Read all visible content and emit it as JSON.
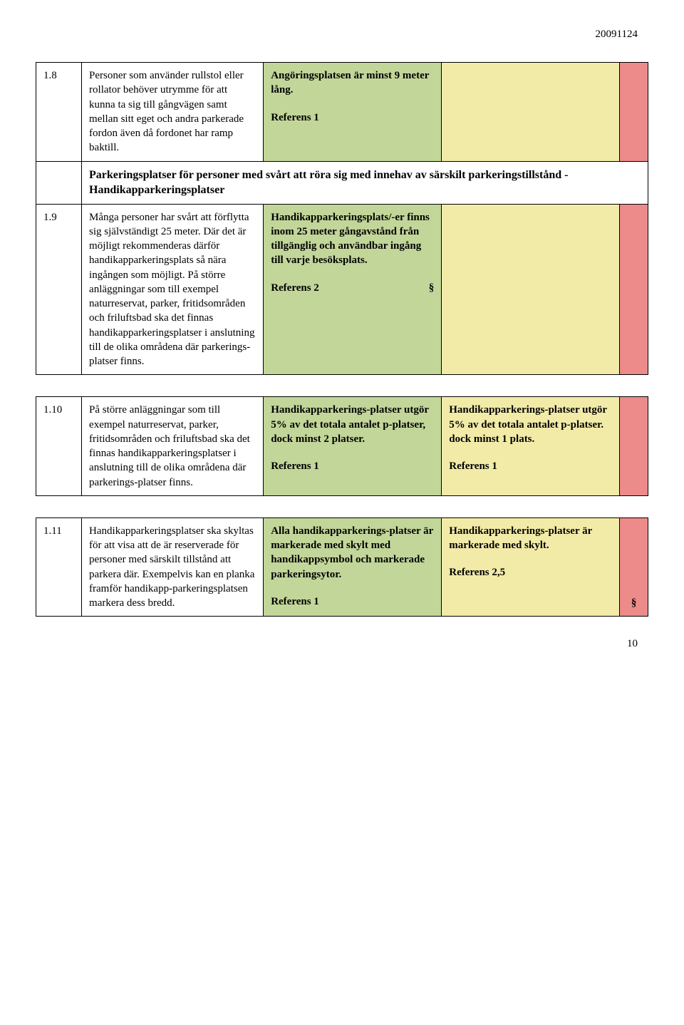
{
  "date": "20091124",
  "page_number": "10",
  "colors": {
    "col3_bg": "#c2d699",
    "col4_bg": "#f2eba8",
    "col5_bg": "#ed8a8a",
    "border": "#000000",
    "text": "#000000"
  },
  "rows": {
    "r18": {
      "num": "1.8",
      "c2": "Personer som använder rullstol eller rollator behöver utrymme för att kunna ta sig till gångvägen samt mellan sitt eget och andra parkerade fordon även då fordonet har ramp baktill.",
      "c3_bold": "Angöringsplatsen är minst 9 meter lång.",
      "c3_ref": "Referens 1"
    },
    "section": {
      "title": "Parkeringsplatser för personer med svårt att röra sig med innehav av särskilt parkeringstillstånd -  Handikapparkeringsplatser"
    },
    "r19": {
      "num": "1.9",
      "c2": "Många personer har svårt att förflytta sig självständigt 25 meter. Där det är möjligt rekommenderas därför handikapparkeringsplats så nära ingången som möjligt. På större anläggningar som till exempel naturreservat, parker, fritidsområden och friluftsbad ska det finnas handikapparkeringsplatser i anslutning till de olika områdena där parkerings-platser finns.",
      "c3_bold": "Handikapparkeringsplats/-er finns inom 25 meter gångavstånd från tillgänglig och användbar ingång till varje besöksplats.",
      "c3_ref": "Referens 2",
      "c3_sym": "§"
    },
    "r110": {
      "num": "1.10",
      "c2": "På större anläggningar som till exempel naturreservat, parker, fritidsområden och friluftsbad ska det finnas handikapparkeringsplatser i anslutning till de olika områdena där parkerings-platser finns.",
      "c3_bold": "Handikapparkerings-platser utgör 5% av det totala antalet p-platser, dock minst 2 platser.",
      "c3_ref": "Referens 1",
      "c4_bold": "Handikapparkerings-platser utgör 5% av det totala antalet p-platser. dock minst 1 plats.",
      "c4_ref": "Referens 1"
    },
    "r111": {
      "num": "1.11",
      "c2": "Handikapparkeringsplatser ska skyltas för att visa att de är reserverade för personer med särskilt tillstånd att parkera där. Exempelvis kan en planka framför handikapp-parkeringsplatsen markera dess bredd.",
      "c3_bold": "Alla handikapparkerings-platser är markerade med skylt med handikappsymbol och markerade parkeringsytor.",
      "c3_ref": "Referens 1",
      "c4_bold": "Handikapparkerings-platser är markerade med skylt.",
      "c4_ref": "Referens 2,5",
      "c5_sym": "§"
    }
  }
}
